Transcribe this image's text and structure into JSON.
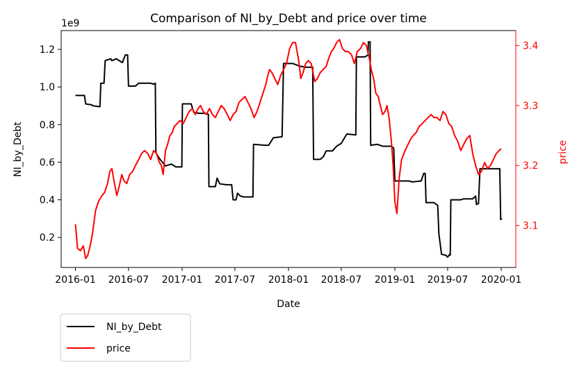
{
  "chart_data": {
    "type": "line",
    "title": "Comparison of NI_by_Debt and price over time",
    "xlabel": "Date",
    "ylabel_left": "NI_by_Debt",
    "ylabel_right": "price",
    "left_offset_text": "1e9",
    "x_ticks": [
      "2016-01",
      "2016-07",
      "2017-01",
      "2017-07",
      "2018-01",
      "2018-07",
      "2019-01",
      "2019-07",
      "2020-01"
    ],
    "y_left_ticks": [
      "0.2",
      "0.4",
      "0.6",
      "0.8",
      "1.0",
      "1.2"
    ],
    "y_right_ticks": [
      "3.1",
      "3.2",
      "3.3",
      "3.4"
    ],
    "ylim_left": [
      0.04,
      1.3
    ],
    "ylim_right": [
      3.03,
      3.425
    ],
    "xlim": [
      "2015-11-13",
      "2020-02-20"
    ],
    "left_color": "#000000",
    "right_color": "#ff0000",
    "legend_placement": "below-left",
    "series": [
      {
        "name": "NI_by_Debt",
        "axis": "left",
        "color": "#000000",
        "unit_scale": "1e9",
        "points": [
          [
            "2016-01-01",
            0.955
          ],
          [
            "2016-02-01",
            0.955
          ],
          [
            "2016-02-05",
            0.91
          ],
          [
            "2016-02-25",
            0.905
          ],
          [
            "2016-03-01",
            0.9
          ],
          [
            "2016-03-25",
            0.895
          ],
          [
            "2016-03-28",
            1.02
          ],
          [
            "2016-04-08",
            1.02
          ],
          [
            "2016-04-12",
            1.14
          ],
          [
            "2016-05-01",
            1.15
          ],
          [
            "2016-05-05",
            1.14
          ],
          [
            "2016-05-20",
            1.15
          ],
          [
            "2016-06-10",
            1.13
          ],
          [
            "2016-06-20",
            1.17
          ],
          [
            "2016-06-28",
            1.17
          ],
          [
            "2016-07-01",
            1.005
          ],
          [
            "2016-07-25",
            1.005
          ],
          [
            "2016-08-05",
            1.02
          ],
          [
            "2016-09-15",
            1.02
          ],
          [
            "2016-09-25",
            1.015
          ],
          [
            "2016-10-01",
            1.02
          ],
          [
            "2016-10-03",
            0.65
          ],
          [
            "2016-10-15",
            0.62
          ],
          [
            "2016-10-25",
            0.6
          ],
          [
            "2016-11-05",
            0.58
          ],
          [
            "2016-11-25",
            0.59
          ],
          [
            "2016-12-10",
            0.575
          ],
          [
            "2016-12-31",
            0.575
          ],
          [
            "2017-01-02",
            0.91
          ],
          [
            "2017-02-01",
            0.91
          ],
          [
            "2017-02-10",
            0.865
          ],
          [
            "2017-03-01",
            0.86
          ],
          [
            "2017-03-20",
            0.86
          ],
          [
            "2017-04-01",
            0.855
          ],
          [
            "2017-04-03",
            0.47
          ],
          [
            "2017-04-25",
            0.47
          ],
          [
            "2017-05-01",
            0.515
          ],
          [
            "2017-05-10",
            0.485
          ],
          [
            "2017-06-01",
            0.48
          ],
          [
            "2017-06-20",
            0.48
          ],
          [
            "2017-06-25",
            0.4
          ],
          [
            "2017-07-05",
            0.4
          ],
          [
            "2017-07-10",
            0.435
          ],
          [
            "2017-07-20",
            0.42
          ],
          [
            "2017-08-01",
            0.415
          ],
          [
            "2017-09-01",
            0.415
          ],
          [
            "2017-09-03",
            0.695
          ],
          [
            "2017-10-15",
            0.69
          ],
          [
            "2017-10-25",
            0.69
          ],
          [
            "2017-11-10",
            0.73
          ],
          [
            "2017-12-10",
            0.735
          ],
          [
            "2017-12-15",
            1.125
          ],
          [
            "2018-01-15",
            1.125
          ],
          [
            "2018-02-10",
            1.11
          ],
          [
            "2018-03-01",
            1.105
          ],
          [
            "2018-03-25",
            1.105
          ],
          [
            "2018-03-28",
            0.615
          ],
          [
            "2018-04-20",
            0.615
          ],
          [
            "2018-05-01",
            0.63
          ],
          [
            "2018-05-10",
            0.66
          ],
          [
            "2018-06-01",
            0.66
          ],
          [
            "2018-06-15",
            0.685
          ],
          [
            "2018-07-01",
            0.7
          ],
          [
            "2018-07-20",
            0.75
          ],
          [
            "2018-08-20",
            0.745
          ],
          [
            "2018-08-22",
            1.16
          ],
          [
            "2018-09-20",
            1.16
          ],
          [
            "2018-10-01",
            1.17
          ],
          [
            "2018-10-02",
            1.24
          ],
          [
            "2018-10-08",
            1.24
          ],
          [
            "2018-10-10",
            0.69
          ],
          [
            "2018-11-01",
            0.695
          ],
          [
            "2018-11-20",
            0.685
          ],
          [
            "2018-12-20",
            0.685
          ],
          [
            "2018-12-28",
            0.675
          ],
          [
            "2019-01-01",
            0.5
          ],
          [
            "2019-02-20",
            0.5
          ],
          [
            "2019-03-01",
            0.495
          ],
          [
            "2019-04-01",
            0.5
          ],
          [
            "2019-04-10",
            0.54
          ],
          [
            "2019-04-15",
            0.54
          ],
          [
            "2019-04-18",
            0.385
          ],
          [
            "2019-05-15",
            0.385
          ],
          [
            "2019-05-28",
            0.37
          ],
          [
            "2019-06-01",
            0.22
          ],
          [
            "2019-06-10",
            0.11
          ],
          [
            "2019-06-25",
            0.105
          ],
          [
            "2019-07-01",
            0.095
          ],
          [
            "2019-07-08",
            0.11
          ],
          [
            "2019-07-10",
            0.105
          ],
          [
            "2019-07-12",
            0.4
          ],
          [
            "2019-08-15",
            0.4
          ],
          [
            "2019-08-25",
            0.405
          ],
          [
            "2019-09-25",
            0.405
          ],
          [
            "2019-10-05",
            0.42
          ],
          [
            "2019-10-08",
            0.375
          ],
          [
            "2019-10-15",
            0.38
          ],
          [
            "2019-10-20",
            0.565
          ],
          [
            "2019-11-20",
            0.565
          ],
          [
            "2019-12-20",
            0.565
          ],
          [
            "2019-12-27",
            0.565
          ],
          [
            "2019-12-30",
            0.295
          ],
          [
            "2020-01-03",
            0.3
          ]
        ]
      },
      {
        "name": "price",
        "axis": "right",
        "color": "#ff0000",
        "points": [
          [
            "2016-01-01",
            3.102
          ],
          [
            "2016-01-08",
            3.062
          ],
          [
            "2016-01-18",
            3.058
          ],
          [
            "2016-01-28",
            3.066
          ],
          [
            "2016-02-05",
            3.045
          ],
          [
            "2016-02-12",
            3.05
          ],
          [
            "2016-02-20",
            3.065
          ],
          [
            "2016-02-28",
            3.085
          ],
          [
            "2016-03-10",
            3.125
          ],
          [
            "2016-03-20",
            3.14
          ],
          [
            "2016-04-01",
            3.15
          ],
          [
            "2016-04-10",
            3.155
          ],
          [
            "2016-04-20",
            3.17
          ],
          [
            "2016-04-28",
            3.19
          ],
          [
            "2016-05-05",
            3.195
          ],
          [
            "2016-05-12",
            3.175
          ],
          [
            "2016-05-22",
            3.15
          ],
          [
            "2016-05-30",
            3.165
          ],
          [
            "2016-06-08",
            3.185
          ],
          [
            "2016-06-15",
            3.175
          ],
          [
            "2016-06-25",
            3.17
          ],
          [
            "2016-07-05",
            3.185
          ],
          [
            "2016-07-15",
            3.19
          ],
          [
            "2016-07-25",
            3.2
          ],
          [
            "2016-08-05",
            3.21
          ],
          [
            "2016-08-15",
            3.22
          ],
          [
            "2016-08-25",
            3.225
          ],
          [
            "2016-09-05",
            3.22
          ],
          [
            "2016-09-15",
            3.21
          ],
          [
            "2016-09-25",
            3.225
          ],
          [
            "2016-10-05",
            3.22
          ],
          [
            "2016-10-15",
            3.205
          ],
          [
            "2016-10-22",
            3.2
          ],
          [
            "2016-10-28",
            3.185
          ],
          [
            "2016-11-05",
            3.225
          ],
          [
            "2016-11-12",
            3.235
          ],
          [
            "2016-11-20",
            3.25
          ],
          [
            "2016-11-28",
            3.255
          ],
          [
            "2016-12-05",
            3.265
          ],
          [
            "2016-12-15",
            3.27
          ],
          [
            "2016-12-25",
            3.275
          ],
          [
            "2017-01-05",
            3.27
          ],
          [
            "2017-01-15",
            3.28
          ],
          [
            "2017-01-25",
            3.29
          ],
          [
            "2017-02-05",
            3.295
          ],
          [
            "2017-02-15",
            3.285
          ],
          [
            "2017-02-25",
            3.295
          ],
          [
            "2017-03-05",
            3.3
          ],
          [
            "2017-03-15",
            3.29
          ],
          [
            "2017-03-25",
            3.285
          ],
          [
            "2017-04-05",
            3.295
          ],
          [
            "2017-04-15",
            3.285
          ],
          [
            "2017-04-25",
            3.28
          ],
          [
            "2017-05-05",
            3.29
          ],
          [
            "2017-05-15",
            3.3
          ],
          [
            "2017-05-25",
            3.295
          ],
          [
            "2017-06-05",
            3.285
          ],
          [
            "2017-06-15",
            3.275
          ],
          [
            "2017-06-25",
            3.285
          ],
          [
            "2017-07-05",
            3.29
          ],
          [
            "2017-07-15",
            3.305
          ],
          [
            "2017-07-25",
            3.31
          ],
          [
            "2017-08-05",
            3.315
          ],
          [
            "2017-08-15",
            3.305
          ],
          [
            "2017-08-25",
            3.295
          ],
          [
            "2017-09-05",
            3.28
          ],
          [
            "2017-09-15",
            3.29
          ],
          [
            "2017-09-25",
            3.305
          ],
          [
            "2017-10-05",
            3.32
          ],
          [
            "2017-10-15",
            3.335
          ],
          [
            "2017-10-22",
            3.35
          ],
          [
            "2017-10-28",
            3.36
          ],
          [
            "2017-11-05",
            3.355
          ],
          [
            "2017-11-15",
            3.345
          ],
          [
            "2017-11-25",
            3.335
          ],
          [
            "2017-12-05",
            3.35
          ],
          [
            "2017-12-15",
            3.36
          ],
          [
            "2017-12-25",
            3.37
          ],
          [
            "2018-01-05",
            3.395
          ],
          [
            "2018-01-15",
            3.405
          ],
          [
            "2018-01-25",
            3.405
          ],
          [
            "2018-02-05",
            3.375
          ],
          [
            "2018-02-12",
            3.345
          ],
          [
            "2018-02-20",
            3.355
          ],
          [
            "2018-03-01",
            3.37
          ],
          [
            "2018-03-10",
            3.375
          ],
          [
            "2018-03-20",
            3.37
          ],
          [
            "2018-04-01",
            3.34
          ],
          [
            "2018-04-10",
            3.345
          ],
          [
            "2018-04-20",
            3.355
          ],
          [
            "2018-04-30",
            3.36
          ],
          [
            "2018-05-10",
            3.365
          ],
          [
            "2018-05-20",
            3.38
          ],
          [
            "2018-05-28",
            3.39
          ],
          [
            "2018-06-05",
            3.395
          ],
          [
            "2018-06-15",
            3.405
          ],
          [
            "2018-06-25",
            3.41
          ],
          [
            "2018-07-05",
            3.395
          ],
          [
            "2018-07-15",
            3.39
          ],
          [
            "2018-07-25",
            3.39
          ],
          [
            "2018-08-05",
            3.385
          ],
          [
            "2018-08-15",
            3.37
          ],
          [
            "2018-08-25",
            3.39
          ],
          [
            "2018-09-05",
            3.395
          ],
          [
            "2018-09-15",
            3.405
          ],
          [
            "2018-09-25",
            3.4
          ],
          [
            "2018-10-05",
            3.38
          ],
          [
            "2018-10-12",
            3.36
          ],
          [
            "2018-10-20",
            3.345
          ],
          [
            "2018-10-28",
            3.32
          ],
          [
            "2018-11-05",
            3.315
          ],
          [
            "2018-11-12",
            3.3
          ],
          [
            "2018-11-20",
            3.285
          ],
          [
            "2018-11-28",
            3.29
          ],
          [
            "2018-12-05",
            3.3
          ],
          [
            "2018-12-12",
            3.28
          ],
          [
            "2018-12-20",
            3.24
          ],
          [
            "2018-12-26",
            3.2
          ],
          [
            "2019-01-01",
            3.14
          ],
          [
            "2019-01-08",
            3.12
          ],
          [
            "2019-01-16",
            3.18
          ],
          [
            "2019-01-24",
            3.21
          ],
          [
            "2019-02-05",
            3.225
          ],
          [
            "2019-02-15",
            3.235
          ],
          [
            "2019-02-25",
            3.245
          ],
          [
            "2019-03-05",
            3.25
          ],
          [
            "2019-03-15",
            3.255
          ],
          [
            "2019-03-25",
            3.265
          ],
          [
            "2019-04-05",
            3.27
          ],
          [
            "2019-04-15",
            3.275
          ],
          [
            "2019-04-25",
            3.28
          ],
          [
            "2019-05-05",
            3.285
          ],
          [
            "2019-05-15",
            3.28
          ],
          [
            "2019-05-25",
            3.28
          ],
          [
            "2019-06-05",
            3.275
          ],
          [
            "2019-06-15",
            3.29
          ],
          [
            "2019-06-25",
            3.285
          ],
          [
            "2019-07-05",
            3.27
          ],
          [
            "2019-07-15",
            3.265
          ],
          [
            "2019-07-25",
            3.25
          ],
          [
            "2019-08-05",
            3.24
          ],
          [
            "2019-08-15",
            3.225
          ],
          [
            "2019-08-25",
            3.235
          ],
          [
            "2019-09-05",
            3.245
          ],
          [
            "2019-09-15",
            3.25
          ],
          [
            "2019-09-25",
            3.22
          ],
          [
            "2019-10-05",
            3.2
          ],
          [
            "2019-10-15",
            3.185
          ],
          [
            "2019-10-25",
            3.19
          ],
          [
            "2019-11-05",
            3.205
          ],
          [
            "2019-11-15",
            3.195
          ],
          [
            "2019-11-25",
            3.2
          ],
          [
            "2019-12-05",
            3.21
          ],
          [
            "2019-12-15",
            3.22
          ],
          [
            "2019-12-25",
            3.225
          ],
          [
            "2020-01-01",
            3.228
          ]
        ]
      }
    ]
  },
  "legend": {
    "items": [
      {
        "label": "NI_by_Debt",
        "color": "#000000"
      },
      {
        "label": "price",
        "color": "#ff0000"
      }
    ]
  }
}
